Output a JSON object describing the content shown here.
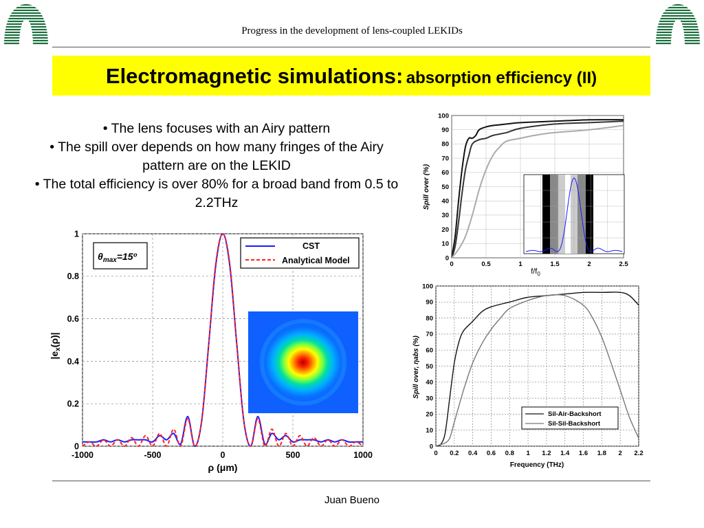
{
  "header": {
    "title": "Progress in the development of lens-coupled LEKIDs"
  },
  "title": {
    "main": "Electromagnetic simulations:",
    "sub": "absorption efficiency (II)"
  },
  "bullets": [
    "• The lens focuses with an Airy pattern",
    "• The spill over depends on how many fringes of the Airy pattern are on the LEKID",
    "• The total efficiency is over 80% for a broad band from 0.5 to 2.2THz"
  ],
  "footer": {
    "author": "Juan Bueno"
  },
  "colors": {
    "title_bg": "#ffff00",
    "cst": "#1a1aff",
    "analytical": "#ff2020",
    "logo": "#1a6e3c"
  },
  "icons": {
    "logo_left": "institution-logo-icon",
    "logo_right": "institution-logo-icon"
  },
  "chart_data": [
    {
      "type": "line",
      "title": "",
      "xlabel": "ρ  (μm)",
      "ylabel": "|e_x(ρ)|",
      "annotation": "θmax=15º",
      "xlim": [
        -1000,
        1000
      ],
      "ylim": [
        0,
        1
      ],
      "xticks": [
        -1000,
        -500,
        0,
        500,
        1000
      ],
      "yticks": [
        0,
        0.2,
        0.4,
        0.6,
        0.8,
        1
      ],
      "grid": true,
      "legend_position": "top-right",
      "series": [
        {
          "name": "CST",
          "x": [
            -1000,
            -950,
            -900,
            -850,
            -800,
            -750,
            -700,
            -650,
            -600,
            -550,
            -500,
            -450,
            -400,
            -350,
            -300,
            -250,
            -200,
            -150,
            -100,
            -50,
            0,
            50,
            100,
            150,
            200,
            250,
            300,
            350,
            400,
            450,
            500,
            550,
            600,
            650,
            700,
            750,
            800,
            850,
            900,
            950,
            1000
          ],
          "y": [
            0.02,
            0.02,
            0.02,
            0.03,
            0.02,
            0.03,
            0.02,
            0.03,
            0.03,
            0.03,
            0.02,
            0.05,
            0.03,
            0.06,
            0.01,
            0.14,
            0.0,
            0.12,
            0.48,
            0.85,
            1.0,
            0.85,
            0.48,
            0.12,
            0.0,
            0.14,
            0.01,
            0.06,
            0.03,
            0.05,
            0.02,
            0.03,
            0.03,
            0.03,
            0.02,
            0.03,
            0.02,
            0.03,
            0.02,
            0.02,
            0.02
          ]
        },
        {
          "name": "Analytical Model",
          "x": [
            -1000,
            -950,
            -900,
            -850,
            -800,
            -750,
            -700,
            -650,
            -600,
            -550,
            -500,
            -450,
            -400,
            -350,
            -300,
            -250,
            -200,
            -150,
            -100,
            -50,
            0,
            50,
            100,
            150,
            200,
            250,
            300,
            350,
            400,
            450,
            500,
            550,
            600,
            650,
            700,
            750,
            800,
            850,
            900,
            950,
            1000
          ],
          "y": [
            0.0,
            0.02,
            0.0,
            0.03,
            0.0,
            0.03,
            0.0,
            0.04,
            0.0,
            0.05,
            0.0,
            0.06,
            0.0,
            0.08,
            0.0,
            0.13,
            0.0,
            0.12,
            0.48,
            0.86,
            1.0,
            0.86,
            0.48,
            0.12,
            0.0,
            0.13,
            0.0,
            0.08,
            0.0,
            0.06,
            0.0,
            0.05,
            0.0,
            0.04,
            0.0,
            0.03,
            0.0,
            0.03,
            0.0,
            0.02,
            0.0
          ]
        }
      ]
    },
    {
      "type": "line",
      "title": "",
      "xlabel": "f/f0",
      "ylabel": "Spill over (%)",
      "xlim": [
        0,
        2.5
      ],
      "ylim": [
        0,
        100
      ],
      "xticks": [
        0,
        0.5,
        1,
        1.5,
        2,
        2.5
      ],
      "yticks": [
        0,
        10,
        20,
        30,
        40,
        50,
        60,
        70,
        80,
        90,
        100
      ],
      "grid": true,
      "series": [
        {
          "color": "#111111",
          "x": [
            0,
            0.05,
            0.1,
            0.15,
            0.2,
            0.25,
            0.3,
            0.35,
            0.4,
            0.5,
            0.6,
            0.8,
            1.0,
            1.5,
            2.0,
            2.5
          ],
          "y": [
            0,
            15,
            40,
            62,
            78,
            84,
            84,
            86,
            90,
            92,
            93,
            94,
            95,
            96,
            97,
            97
          ]
        },
        {
          "color": "#333333",
          "x": [
            0,
            0.05,
            0.1,
            0.15,
            0.2,
            0.25,
            0.3,
            0.4,
            0.5,
            0.6,
            0.8,
            1.0,
            1.5,
            2.0,
            2.5
          ],
          "y": [
            0,
            8,
            25,
            45,
            62,
            72,
            80,
            83,
            84,
            86,
            88,
            91,
            94,
            95,
            96
          ]
        },
        {
          "color": "#aaaaaa",
          "x": [
            0,
            0.1,
            0.2,
            0.3,
            0.4,
            0.5,
            0.6,
            0.7,
            0.8,
            1.0,
            1.2,
            1.5,
            2.0,
            2.5
          ],
          "y": [
            0,
            6,
            15,
            30,
            48,
            62,
            72,
            78,
            82,
            84,
            86,
            88,
            90,
            93
          ]
        }
      ]
    },
    {
      "type": "line",
      "title": "",
      "xlabel": "Frequency (THz)",
      "ylabel": "Spill over, ηabs (%)",
      "xlim": [
        0,
        2.2
      ],
      "ylim": [
        0,
        100
      ],
      "xticks": [
        0,
        0.2,
        0.4,
        0.6,
        0.8,
        1,
        1.2,
        1.4,
        1.6,
        1.8,
        2,
        2.2
      ],
      "yticks": [
        0,
        10,
        20,
        30,
        40,
        50,
        60,
        70,
        80,
        90,
        100
      ],
      "grid": true,
      "legend_position": "bottom-right",
      "series": [
        {
          "name": "Sil-Air-Backshort",
          "color": "#111111",
          "x": [
            0,
            0.05,
            0.1,
            0.15,
            0.2,
            0.25,
            0.3,
            0.4,
            0.5,
            0.6,
            0.8,
            1.0,
            1.2,
            1.4,
            1.6,
            1.8,
            2.0,
            2.1,
            2.2
          ],
          "y": [
            0,
            1,
            8,
            30,
            52,
            65,
            72,
            78,
            84,
            87,
            90,
            93,
            94,
            95,
            96,
            96,
            96,
            94,
            88
          ]
        },
        {
          "name": "Sil-Sil-Backshort",
          "color": "#777777",
          "x": [
            0,
            0.05,
            0.1,
            0.15,
            0.2,
            0.3,
            0.4,
            0.5,
            0.6,
            0.7,
            0.8,
            1.0,
            1.2,
            1.4,
            1.6,
            1.7,
            1.8,
            1.9,
            2.0,
            2.1,
            2.2
          ],
          "y": [
            0,
            1,
            2,
            5,
            15,
            35,
            52,
            64,
            73,
            80,
            86,
            91,
            94,
            94,
            88,
            80,
            68,
            52,
            35,
            18,
            5
          ]
        }
      ]
    }
  ]
}
